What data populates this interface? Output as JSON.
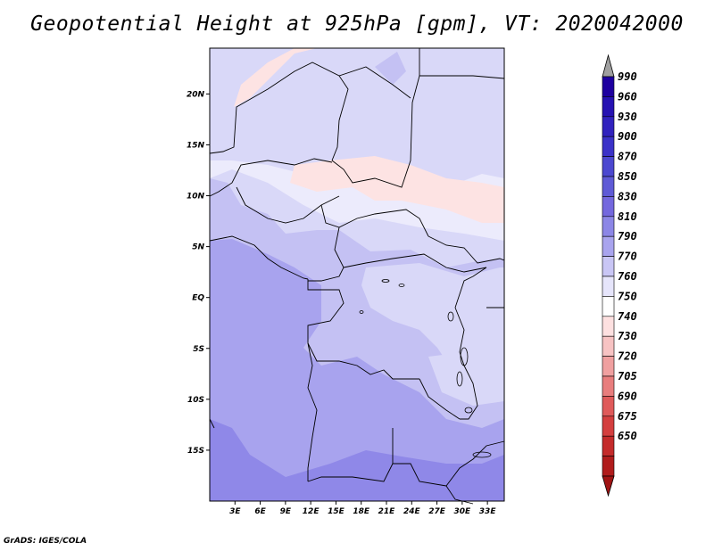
{
  "title": "Geopotential Height at 925hPa [gpm], VT: 2020042000",
  "credit": "GrADS: IGES/COLA",
  "axes": {
    "lat_labels": [
      "20N",
      "15N",
      "10N",
      "5N",
      "EQ",
      "5S",
      "10S",
      "15S"
    ],
    "lat_values": [
      20,
      15,
      10,
      5,
      0,
      -5,
      -10,
      -15
    ],
    "lon_labels": [
      "3E",
      "6E",
      "9E",
      "12E",
      "15E",
      "18E",
      "21E",
      "24E",
      "27E",
      "30E",
      "33E"
    ],
    "lon_values": [
      3,
      6,
      9,
      12,
      15,
      18,
      21,
      24,
      27,
      30,
      33
    ],
    "lon_range": [
      0,
      35
    ],
    "lat_range": [
      -20,
      24.5
    ]
  },
  "colorbar": {
    "labels": [
      "990",
      "960",
      "930",
      "900",
      "870",
      "850",
      "830",
      "810",
      "790",
      "770",
      "760",
      "750",
      "740",
      "730",
      "720",
      "705",
      "690",
      "675",
      "650"
    ],
    "colors": [
      "#1e00a0",
      "#2612b2",
      "#3122be",
      "#3b32c8",
      "#4c48d0",
      "#5f5ad6",
      "#7468de",
      "#8c86e6",
      "#a9a4ee",
      "#c9c6f5",
      "#e6e5fb",
      "#ffffff",
      "#fde0e0",
      "#f7c3c3",
      "#f0a0a0",
      "#e87d7d",
      "#df5a5a",
      "#d43f3f",
      "#c42b2b",
      "#b01c1c"
    ],
    "top_arrow_color": "#a0a0a0",
    "bottom_arrow_color": "#a01414"
  },
  "regions": [
    {
      "name": "north-high",
      "color": "#d9d8f8"
    },
    {
      "name": "sahel-light",
      "color": "#ecebfc"
    },
    {
      "name": "equatorial",
      "color": "#c4c1f3"
    },
    {
      "name": "south",
      "color": "#a8a3ee"
    },
    {
      "name": "far-south",
      "color": "#8f88e8"
    },
    {
      "name": "pink",
      "color": "#fde3e3"
    }
  ]
}
